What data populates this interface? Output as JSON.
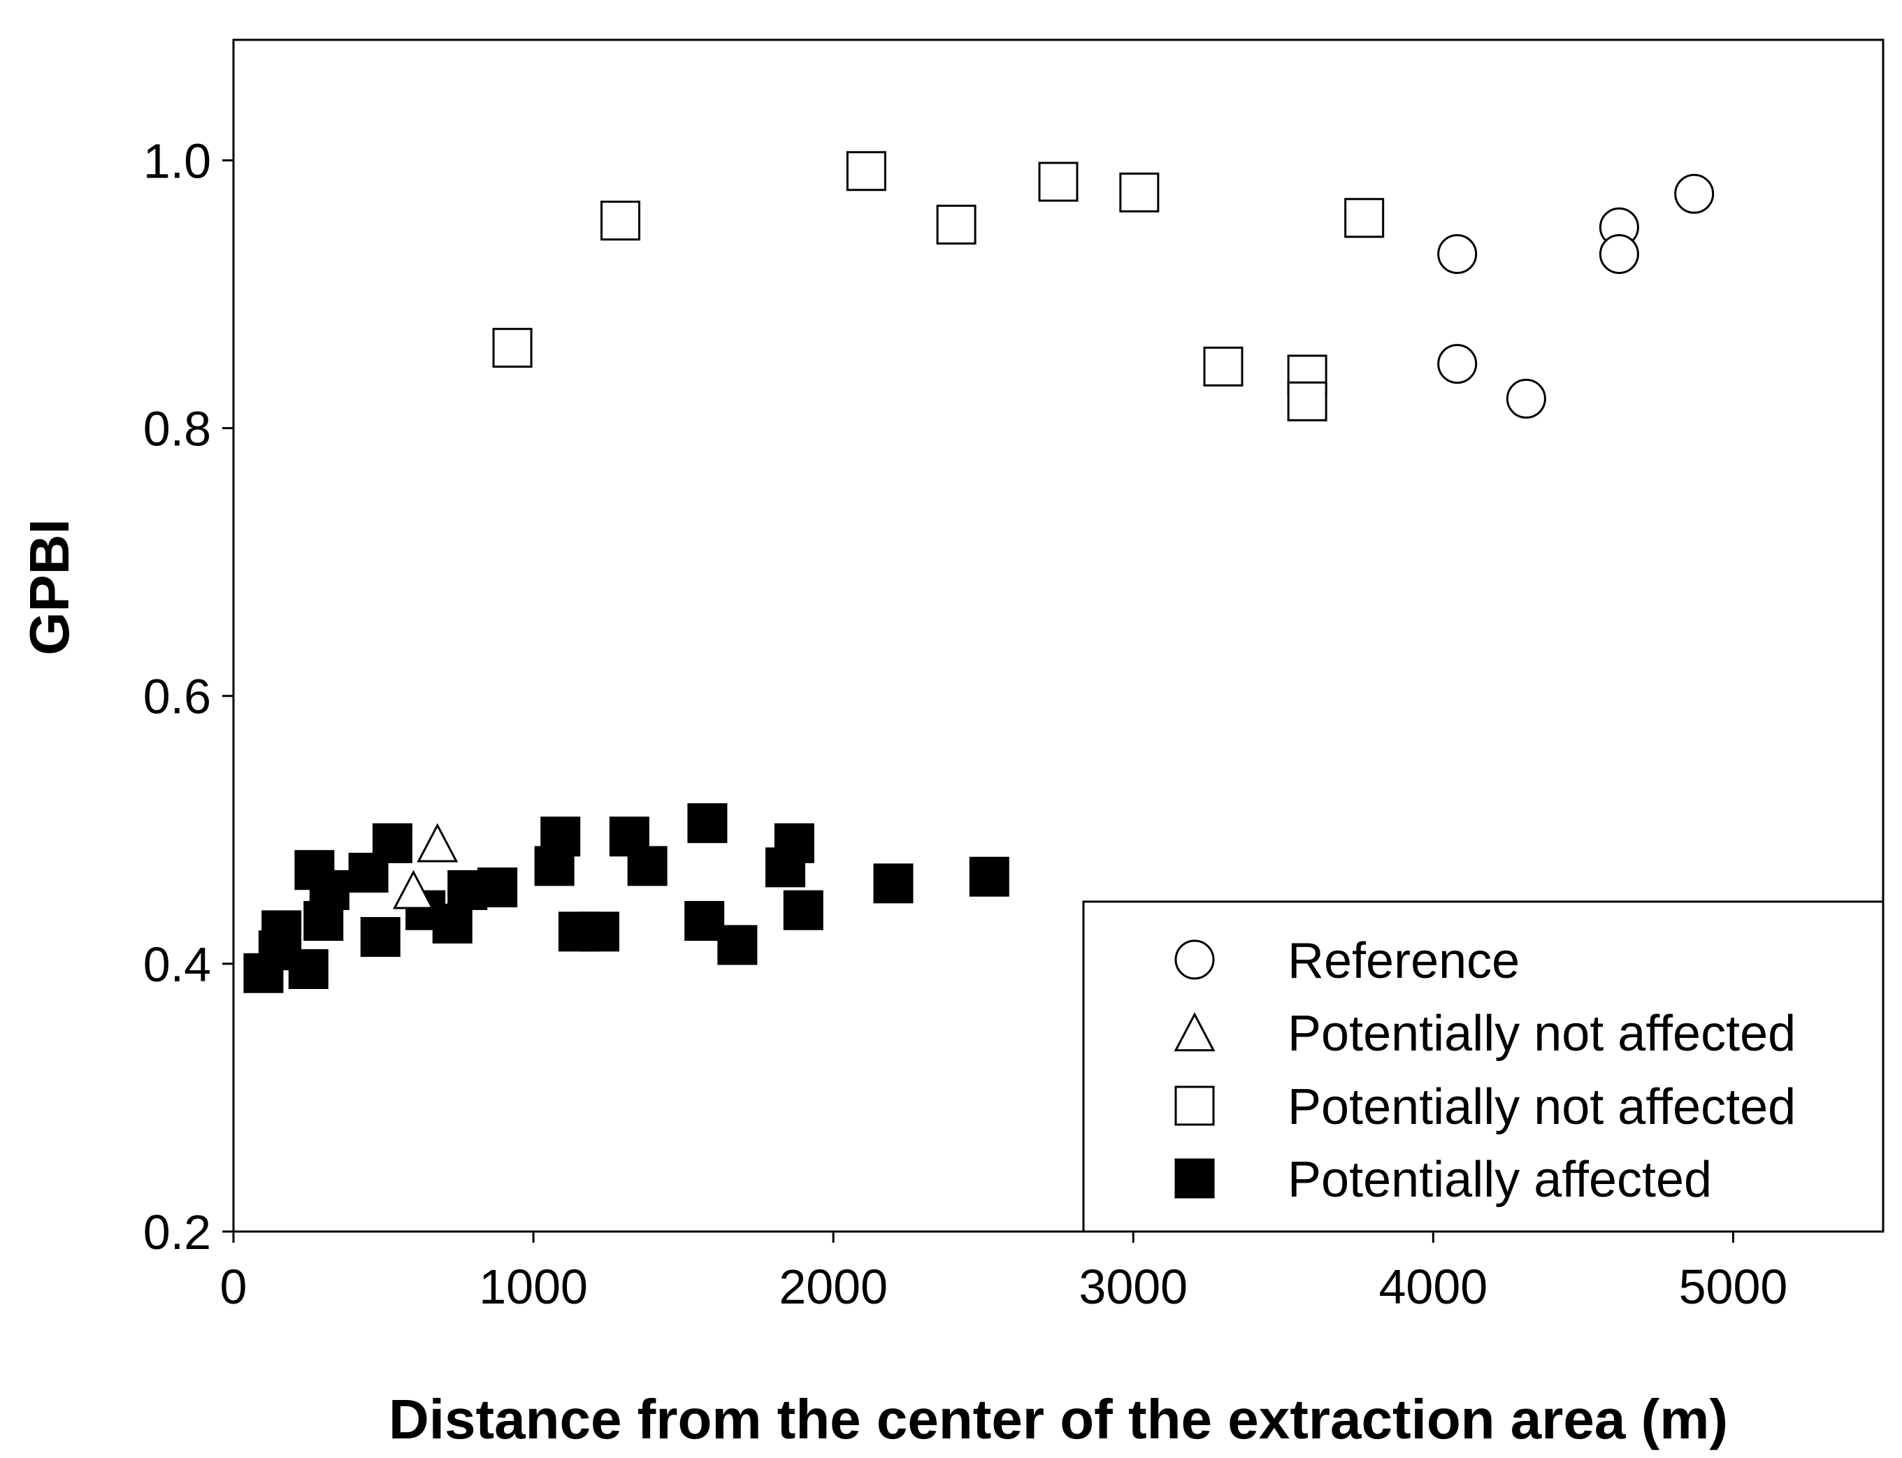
{
  "chart_data": {
    "type": "scatter",
    "title": "",
    "xlabel": "Distance from the center of the extraction area (m)",
    "ylabel": "GPBI",
    "xlim": [
      0,
      5500
    ],
    "ylim": [
      0.2,
      1.09
    ],
    "x_ticks": [
      {
        "value": 0,
        "label": "0"
      },
      {
        "value": 1000,
        "label": "1000"
      },
      {
        "value": 2000,
        "label": "2000"
      },
      {
        "value": 3000,
        "label": "3000"
      },
      {
        "value": 4000,
        "label": "4000"
      },
      {
        "value": 5000,
        "label": "5000"
      }
    ],
    "y_ticks": [
      {
        "value": 0.2,
        "label": "0.2"
      },
      {
        "value": 0.4,
        "label": "0.4"
      },
      {
        "value": 0.6,
        "label": "0.6"
      },
      {
        "value": 0.8,
        "label": "0.8"
      },
      {
        "value": 1.0,
        "label": "1.0"
      }
    ],
    "grid": false,
    "legend_position": "bottom-right",
    "series": [
      {
        "name": "Reference",
        "marker": "circle-open",
        "points": [
          {
            "x": 4080,
            "y": 0.93
          },
          {
            "x": 4080,
            "y": 0.848
          },
          {
            "x": 4310,
            "y": 0.822
          },
          {
            "x": 4620,
            "y": 0.95
          },
          {
            "x": 4620,
            "y": 0.93
          },
          {
            "x": 4870,
            "y": 0.975
          }
        ]
      },
      {
        "name": "Potentially not affected",
        "marker": "triangle-open",
        "points": [
          {
            "x": 680,
            "y": 0.49
          },
          {
            "x": 600,
            "y": 0.455
          }
        ]
      },
      {
        "name": "Potentially not affected",
        "marker": "square-open",
        "points": [
          {
            "x": 930,
            "y": 0.86
          },
          {
            "x": 1290,
            "y": 0.955
          },
          {
            "x": 2110,
            "y": 0.992
          },
          {
            "x": 2410,
            "y": 0.952
          },
          {
            "x": 2750,
            "y": 0.984
          },
          {
            "x": 3020,
            "y": 0.976
          },
          {
            "x": 3300,
            "y": 0.846
          },
          {
            "x": 3580,
            "y": 0.84
          },
          {
            "x": 3580,
            "y": 0.82
          },
          {
            "x": 3770,
            "y": 0.957
          }
        ]
      },
      {
        "name": "Potentially affected",
        "marker": "square-filled",
        "points": [
          {
            "x": 100,
            "y": 0.393
          },
          {
            "x": 150,
            "y": 0.41
          },
          {
            "x": 160,
            "y": 0.425
          },
          {
            "x": 250,
            "y": 0.396
          },
          {
            "x": 270,
            "y": 0.47
          },
          {
            "x": 300,
            "y": 0.432
          },
          {
            "x": 320,
            "y": 0.455
          },
          {
            "x": 450,
            "y": 0.468
          },
          {
            "x": 490,
            "y": 0.42
          },
          {
            "x": 530,
            "y": 0.49
          },
          {
            "x": 640,
            "y": 0.44
          },
          {
            "x": 730,
            "y": 0.43
          },
          {
            "x": 780,
            "y": 0.455
          },
          {
            "x": 880,
            "y": 0.457
          },
          {
            "x": 1070,
            "y": 0.473
          },
          {
            "x": 1090,
            "y": 0.495
          },
          {
            "x": 1150,
            "y": 0.424
          },
          {
            "x": 1220,
            "y": 0.424
          },
          {
            "x": 1320,
            "y": 0.495
          },
          {
            "x": 1380,
            "y": 0.473
          },
          {
            "x": 1570,
            "y": 0.432
          },
          {
            "x": 1580,
            "y": 0.505
          },
          {
            "x": 1680,
            "y": 0.414
          },
          {
            "x": 1840,
            "y": 0.472
          },
          {
            "x": 1870,
            "y": 0.49
          },
          {
            "x": 1900,
            "y": 0.44
          },
          {
            "x": 2200,
            "y": 0.46
          },
          {
            "x": 2520,
            "y": 0.465
          }
        ]
      }
    ]
  }
}
